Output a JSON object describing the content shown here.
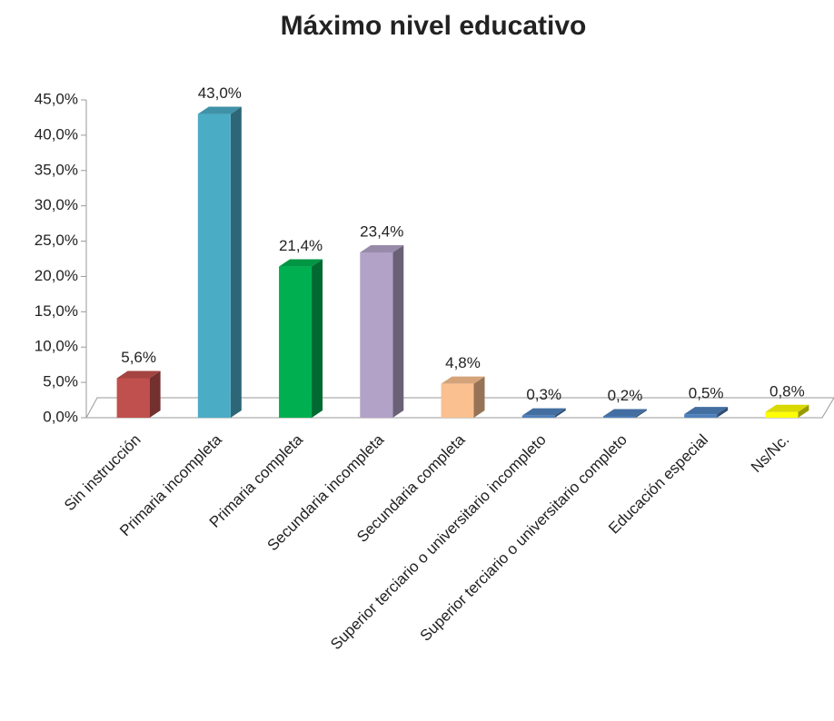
{
  "chart_data": {
    "type": "bar3d",
    "title": "Máximo nivel educativo",
    "categories": [
      "Sin instrucción",
      "Primaria incompleta",
      "Primaria completa",
      "Secundaria incompleta",
      "Secundaria completa",
      "Superior terciario o universitario incompleto",
      "Superior terciario o universitario completo",
      "Educación especial",
      "Ns/Nc."
    ],
    "values": [
      5.6,
      43.0,
      21.4,
      23.4,
      4.8,
      0.3,
      0.2,
      0.5,
      0.8
    ],
    "value_labels": [
      "5,6%",
      "43,0%",
      "21,4%",
      "23,4%",
      "4,8%",
      "0,3%",
      "0,2%",
      "0,5%",
      "0,8%"
    ],
    "colors": [
      "#c0504d",
      "#4bacc6",
      "#00b050",
      "#b3a2c7",
      "#fac090",
      "#4f81bd",
      "#4f81bd",
      "#4f81bd",
      "#ffff00"
    ],
    "ylim": [
      0,
      45
    ],
    "yticks": [
      {
        "value": 0,
        "label": "0,0%"
      },
      {
        "value": 5,
        "label": "5,0%"
      },
      {
        "value": 10,
        "label": "10,0%"
      },
      {
        "value": 15,
        "label": "15,0%"
      },
      {
        "value": 20,
        "label": "20,0%"
      },
      {
        "value": 25,
        "label": "25,0%"
      },
      {
        "value": 30,
        "label": "30,0%"
      },
      {
        "value": 35,
        "label": "35,0%"
      },
      {
        "value": 40,
        "label": "40,0%"
      },
      {
        "value": 45,
        "label": "45,0%"
      }
    ]
  }
}
